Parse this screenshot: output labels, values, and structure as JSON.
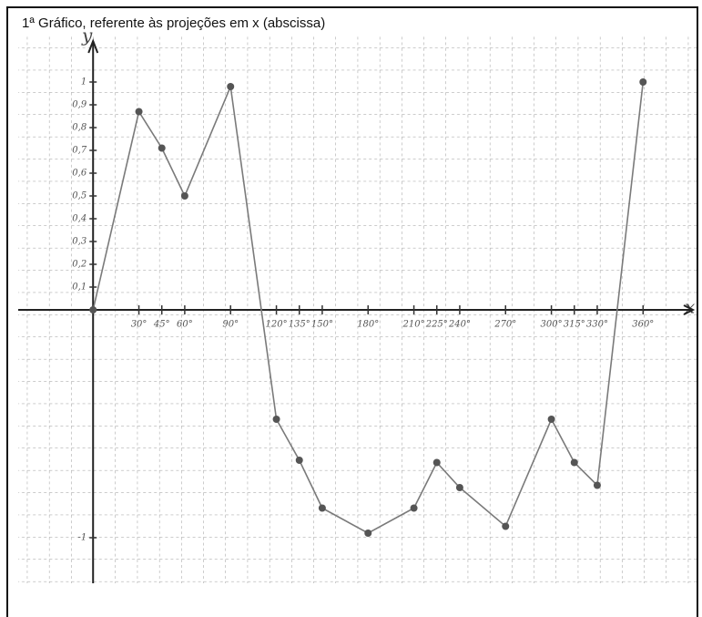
{
  "chart_data": {
    "type": "line",
    "title": "1ª Gráfico, referente às projeções em x (abscissa)",
    "x_label": "x",
    "y_label": "y",
    "x": [
      0,
      30,
      45,
      60,
      90,
      120,
      135,
      150,
      180,
      210,
      225,
      240,
      270,
      300,
      315,
      330,
      360
    ],
    "series": [
      {
        "color": "#7a7a7a",
        "values": [
          0,
          0.87,
          0.71,
          0.5,
          0.98,
          -0.48,
          -0.66,
          -0.87,
          -0.98,
          -0.87,
          -0.67,
          -0.78,
          -0.95,
          -0.48,
          -0.67,
          -0.77,
          1
        ]
      }
    ],
    "xlim": [
      -49,
      395
    ],
    "ylim": [
      -1.2,
      1.24
    ],
    "xticks": [
      {
        "value": 30,
        "label": "30°"
      },
      {
        "value": 45,
        "label": "45°"
      },
      {
        "value": 60,
        "label": "60°"
      },
      {
        "value": 90,
        "label": "90°"
      },
      {
        "value": 120,
        "label": "120°"
      },
      {
        "value": 135,
        "label": "135°"
      },
      {
        "value": 150,
        "label": "150°"
      },
      {
        "value": 180,
        "label": "180°"
      },
      {
        "value": 210,
        "label": "210°"
      },
      {
        "value": 225,
        "label": "225°"
      },
      {
        "value": 240,
        "label": "240°"
      },
      {
        "value": 270,
        "label": "270°"
      },
      {
        "value": 300,
        "label": "300°"
      },
      {
        "value": 315,
        "label": "315°"
      },
      {
        "value": 330,
        "label": "330°"
      },
      {
        "value": 360,
        "label": "360°"
      }
    ],
    "yticks": [
      {
        "value": -1,
        "label": "-1"
      },
      {
        "value": 0.1,
        "label": "0,1"
      },
      {
        "value": 0.2,
        "label": "0,2"
      },
      {
        "value": 0.3,
        "label": "0,3"
      },
      {
        "value": 0.4,
        "label": "0,4"
      },
      {
        "value": 0.5,
        "label": "0,5"
      },
      {
        "value": 0.6,
        "label": "0,6"
      },
      {
        "value": 0.7,
        "label": "0,7"
      },
      {
        "value": 0.8,
        "label": "0,8"
      },
      {
        "value": 0.9,
        "label": "0,9"
      },
      1
    ]
  }
}
